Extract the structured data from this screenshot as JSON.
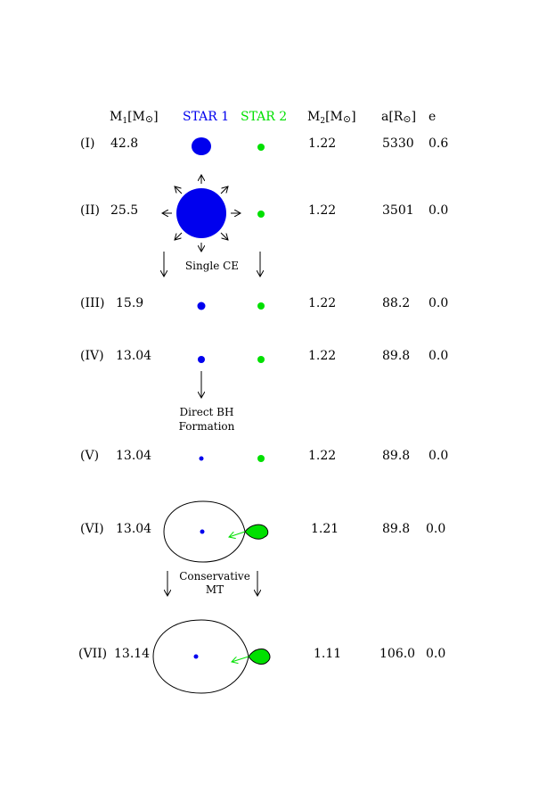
{
  "header": {
    "m1": "M",
    "m1_sub": "1",
    "m1_unit": "[M",
    "m1_close": "]",
    "star1": "STAR 1",
    "star2": "STAR 2",
    "m2": "M",
    "m2_sub": "2",
    "m2_unit": "[M",
    "m2_close": "]",
    "a": "a[R",
    "a_close": "]",
    "e": "e"
  },
  "colors": {
    "star1": "#0000ee",
    "star2": "#00e000",
    "ink": "#000000"
  },
  "stages": [
    {
      "label": "(I)",
      "m1": "42.8",
      "m2": "1.22",
      "a": "5330",
      "e": "0.6"
    },
    {
      "label": "(II)",
      "m1": "25.5",
      "m2": "1.22",
      "a": "3501",
      "e": "0.0"
    },
    {
      "label": "(III)",
      "m1": "15.9",
      "m2": "1.22",
      "a": "88.2",
      "e": "0.0"
    },
    {
      "label": "(IV)",
      "m1": "13.04",
      "m2": "1.22",
      "a": "89.8",
      "e": "0.0"
    },
    {
      "label": "(V)",
      "m1": "13.04",
      "m2": "1.22",
      "a": "89.8",
      "e": "0.0"
    },
    {
      "label": "(VI)",
      "m1": "13.04",
      "m2": "1.21",
      "a": "89.8",
      "e": "0.0"
    },
    {
      "label": "(VII)",
      "m1": "13.14",
      "m2": "1.11",
      "a": "106.0",
      "e": "0.0"
    }
  ],
  "transitions": {
    "single_ce": "Single CE",
    "direct_bh_line1": "Direct BH",
    "direct_bh_line2": "Formation",
    "conservative_line1": "Conservative",
    "conservative_line2": "MT"
  }
}
